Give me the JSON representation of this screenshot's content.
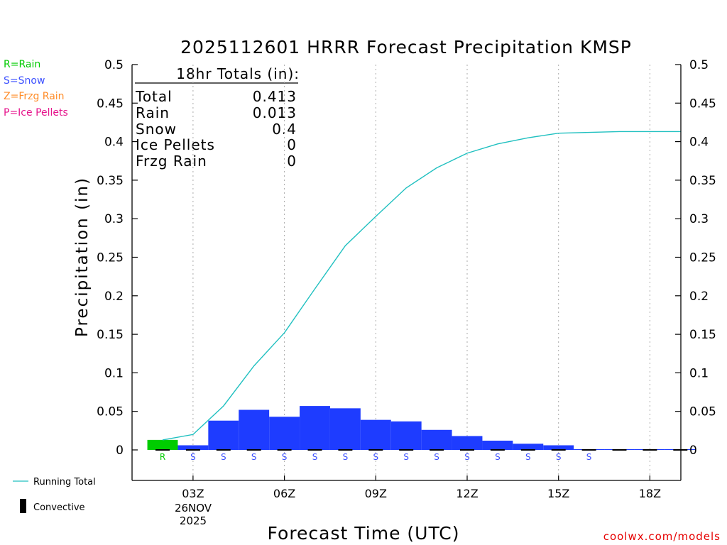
{
  "chart_data": {
    "type": "bar",
    "title": "2025112601 HRRR Forecast Precipitation KMSP",
    "xlabel": "Forecast Time (UTC)",
    "ylabel": "Precipitation (in)",
    "ylim": [
      -0.04,
      0.5
    ],
    "xlim": [
      0,
      18
    ],
    "grid": true,
    "y_ticks": [
      {
        "value": 0,
        "label": "0"
      },
      {
        "value": 0.05,
        "label": "0.05"
      },
      {
        "value": 0.1,
        "label": "0.1"
      },
      {
        "value": 0.15,
        "label": "0.15"
      },
      {
        "value": 0.2,
        "label": "0.2"
      },
      {
        "value": 0.25,
        "label": "0.25"
      },
      {
        "value": 0.3,
        "label": "0.3"
      },
      {
        "value": 0.35,
        "label": "0.35"
      },
      {
        "value": 0.4,
        "label": "0.4"
      },
      {
        "value": 0.45,
        "label": "0.45"
      },
      {
        "value": 0.5,
        "label": "0.5"
      }
    ],
    "x_ticks": [
      {
        "hour": 2,
        "label": "03Z"
      },
      {
        "hour": 5,
        "label": "06Z"
      },
      {
        "hour": 8,
        "label": "09Z"
      },
      {
        "hour": 11,
        "label": "12Z"
      },
      {
        "hour": 14,
        "label": "15Z"
      },
      {
        "hour": 17,
        "label": "18Z"
      }
    ],
    "date_label": [
      "26NOV",
      "2025"
    ],
    "hourly": [
      {
        "hour": 1,
        "value": 0.013,
        "type": "R",
        "color": "#00cc00"
      },
      {
        "hour": 2,
        "value": 0.006,
        "type": "S",
        "color": "#1e3cff"
      },
      {
        "hour": 3,
        "value": 0.038,
        "type": "S",
        "color": "#1e3cff"
      },
      {
        "hour": 4,
        "value": 0.052,
        "type": "S",
        "color": "#1e3cff"
      },
      {
        "hour": 5,
        "value": 0.043,
        "type": "S",
        "color": "#1e3cff"
      },
      {
        "hour": 6,
        "value": 0.057,
        "type": "S",
        "color": "#1e3cff"
      },
      {
        "hour": 7,
        "value": 0.054,
        "type": "S",
        "color": "#1e3cff"
      },
      {
        "hour": 8,
        "value": 0.039,
        "type": "S",
        "color": "#1e3cff"
      },
      {
        "hour": 9,
        "value": 0.037,
        "type": "S",
        "color": "#1e3cff"
      },
      {
        "hour": 10,
        "value": 0.026,
        "type": "S",
        "color": "#1e3cff"
      },
      {
        "hour": 11,
        "value": 0.018,
        "type": "S",
        "color": "#1e3cff"
      },
      {
        "hour": 12,
        "value": 0.012,
        "type": "S",
        "color": "#1e3cff"
      },
      {
        "hour": 13,
        "value": 0.008,
        "type": "S",
        "color": "#1e3cff"
      },
      {
        "hour": 14,
        "value": 0.006,
        "type": "S",
        "color": "#1e3cff"
      },
      {
        "hour": 15,
        "value": 0.001,
        "type": "S",
        "color": "#1e3cff"
      },
      {
        "hour": 16,
        "value": 0.0005,
        "type": "",
        "color": "#1e3cff"
      },
      {
        "hour": 17,
        "value": 0.0003,
        "type": "",
        "color": "#1e3cff"
      },
      {
        "hour": 18,
        "value": 0.0003,
        "type": "",
        "color": "#1e3cff"
      }
    ],
    "running_total": {
      "name": "Running Total",
      "color": "#20c0c0",
      "x": [
        1,
        2,
        3,
        4,
        5,
        6,
        7,
        8,
        9,
        10,
        11,
        12,
        13,
        14,
        15,
        16,
        17,
        18
      ],
      "y": [
        0.013,
        0.02,
        0.057,
        0.109,
        0.152,
        0.209,
        0.265,
        0.303,
        0.34,
        0.366,
        0.385,
        0.397,
        0.405,
        0.411,
        0.412,
        0.413,
        0.413,
        0.413
      ]
    },
    "convective": {
      "name": "Convective",
      "color": "#000000"
    },
    "totals_box": {
      "heading": "18hr Totals (in):",
      "rows": [
        {
          "label": "Total",
          "value": "0.413"
        },
        {
          "label": "Rain",
          "value": "0.013"
        },
        {
          "label": "Snow",
          "value": "0.4"
        },
        {
          "label": "Ice Pellets",
          "value": "0"
        },
        {
          "label": "Frzg Rain",
          "value": "0"
        }
      ]
    },
    "type_legend": [
      {
        "text": "R=Rain",
        "color": "#00cc00"
      },
      {
        "text": "S=Snow",
        "color": "#3c50ff"
      },
      {
        "text": "Z=Frzg Rain",
        "color": "#ff8c28"
      },
      {
        "text": "P=Ice Pellets",
        "color": "#e6148c"
      }
    ],
    "credit": {
      "text": "coolwx.com/models",
      "color": "#e60000"
    }
  }
}
